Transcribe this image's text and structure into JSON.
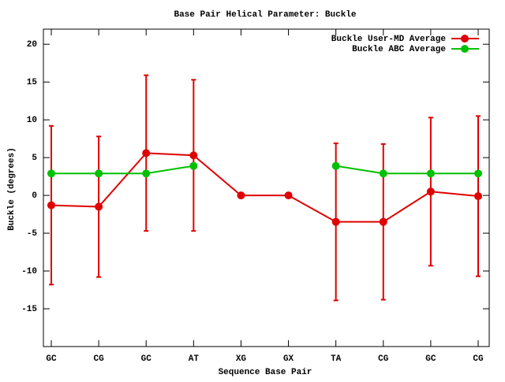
{
  "chart_data": {
    "type": "line",
    "title": "Base Pair Helical Parameter: Buckle",
    "x_label": "Sequence Base Pair",
    "y_label": "Buckle (degrees)",
    "categories": [
      "GC",
      "CG",
      "GC",
      "AT",
      "XG",
      "GX",
      "TA",
      "CG",
      "GC",
      "CG"
    ],
    "series": [
      {
        "name": "Buckle User-MD Average",
        "color": "#e00000",
        "values": [
          -1.3,
          -1.5,
          5.6,
          5.3,
          0,
          0,
          -3.5,
          -3.5,
          0.5,
          -0.1
        ],
        "errors": [
          10.5,
          9.3,
          10.3,
          10.0,
          0,
          0,
          10.4,
          10.3,
          9.8,
          10.6
        ]
      },
      {
        "name": "Buckle ABC Average",
        "color": "#00c000",
        "values": [
          2.9,
          2.9,
          2.9,
          3.9,
          null,
          null,
          3.9,
          2.9,
          2.9,
          2.9
        ]
      }
    ],
    "ylim": [
      -20,
      22
    ],
    "yticks": [
      -15,
      -10,
      -5,
      0,
      5,
      10,
      15,
      20
    ],
    "legend": "upper right"
  }
}
